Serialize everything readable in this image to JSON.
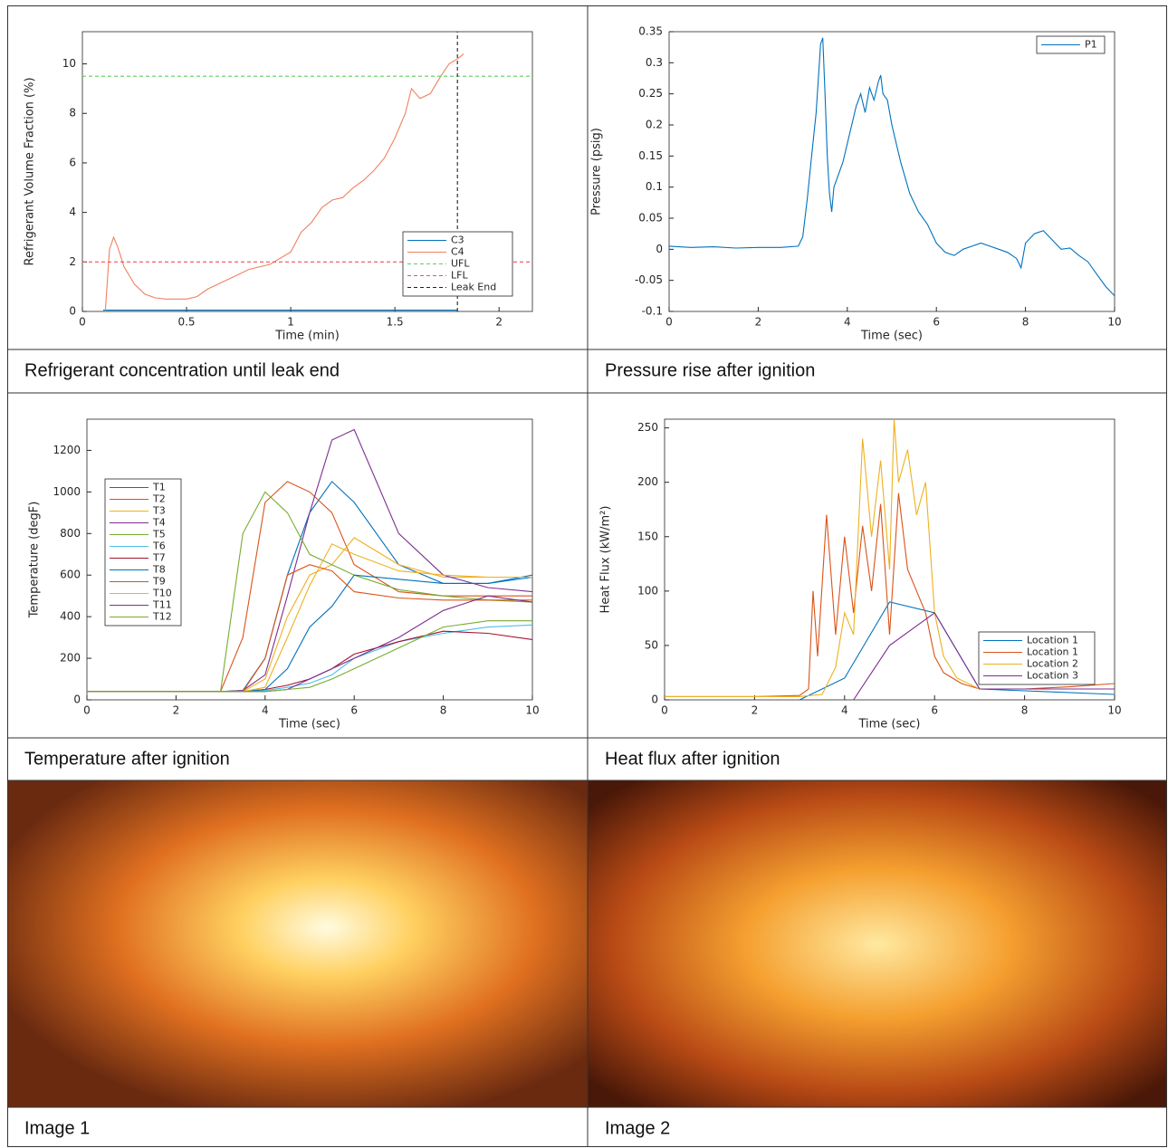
{
  "captions": [
    "Refrigerant concentration until leak end",
    "Pressure rise after ignition",
    "Temperature after ignition",
    "Heat flux after ignition",
    "Image 1",
    "Image 2"
  ],
  "chart_data": [
    {
      "type": "line",
      "xlabel": "Time (min)",
      "ylabel": "Refrigerant Volume Fraction (%)",
      "xlim": [
        0,
        2.16
      ],
      "ylim": [
        0,
        11.3
      ],
      "xticks": [
        0,
        0.5,
        1,
        1.5,
        2
      ],
      "yticks": [
        0,
        2,
        4,
        6,
        8,
        10
      ],
      "legend": "lower right",
      "series": [
        {
          "name": "C3",
          "color": "#0072bd",
          "linestyle": "solid",
          "x": [
            0.1,
            1.8
          ],
          "values": [
            0.05,
            0.05
          ]
        },
        {
          "name": "C4",
          "color": "#f08060",
          "linestyle": "solid",
          "x": [
            0.11,
            0.13,
            0.15,
            0.17,
            0.2,
            0.25,
            0.3,
            0.35,
            0.4,
            0.5,
            0.55,
            0.6,
            0.7,
            0.8,
            0.9,
            1.0,
            1.05,
            1.1,
            1.15,
            1.2,
            1.25,
            1.3,
            1.35,
            1.4,
            1.45,
            1.5,
            1.55,
            1.58,
            1.62,
            1.67,
            1.72,
            1.76,
            1.8,
            1.83
          ],
          "values": [
            0,
            2.5,
            3.0,
            2.6,
            1.8,
            1.1,
            0.7,
            0.55,
            0.5,
            0.5,
            0.6,
            0.9,
            1.3,
            1.7,
            1.9,
            2.4,
            3.2,
            3.6,
            4.2,
            4.5,
            4.6,
            5.0,
            5.3,
            5.7,
            6.2,
            7.0,
            8.0,
            9.0,
            8.6,
            8.8,
            9.5,
            10.0,
            10.2,
            10.4
          ]
        },
        {
          "name": "UFL",
          "color": "#5ccf5c",
          "linestyle": "dash",
          "x": [
            0,
            2.16
          ],
          "values": [
            9.5,
            9.5
          ]
        },
        {
          "name": "LFL",
          "color": "#f05050",
          "linestyle": "dash",
          "x": [
            0,
            2.16
          ],
          "values": [
            2,
            2
          ]
        },
        {
          "name": "Leak End",
          "color": "#222222",
          "linestyle": "dash",
          "x": [
            1.8,
            1.8
          ],
          "values": [
            0,
            11.3
          ]
        }
      ]
    },
    {
      "type": "line",
      "xlabel": "Time (sec)",
      "ylabel": "Pressure (psig)",
      "xlim": [
        0,
        10
      ],
      "ylim": [
        -0.1,
        0.35
      ],
      "xticks": [
        0,
        2,
        4,
        6,
        8,
        10
      ],
      "yticks": [
        -0.1,
        -0.05,
        0,
        0.05,
        0.1,
        0.15,
        0.2,
        0.25,
        0.3,
        0.35
      ],
      "legend": "upper right",
      "series": [
        {
          "name": "P1",
          "color": "#0072bd",
          "linestyle": "solid",
          "x": [
            0,
            0.5,
            1,
            1.5,
            2,
            2.5,
            2.9,
            3.0,
            3.1,
            3.2,
            3.3,
            3.4,
            3.45,
            3.5,
            3.55,
            3.6,
            3.65,
            3.7,
            3.8,
            3.9,
            4.0,
            4.1,
            4.2,
            4.3,
            4.4,
            4.5,
            4.6,
            4.7,
            4.75,
            4.8,
            4.9,
            5.0,
            5.2,
            5.4,
            5.6,
            5.8,
            6.0,
            6.2,
            6.4,
            6.6,
            6.8,
            7.0,
            7.2,
            7.4,
            7.6,
            7.8,
            7.9,
            8.0,
            8.2,
            8.4,
            8.6,
            8.8,
            9.0,
            9.2,
            9.4,
            9.6,
            9.8,
            10
          ],
          "values": [
            0.005,
            0.003,
            0.004,
            0.002,
            0.003,
            0.003,
            0.005,
            0.02,
            0.08,
            0.15,
            0.22,
            0.33,
            0.34,
            0.25,
            0.15,
            0.09,
            0.06,
            0.1,
            0.12,
            0.14,
            0.17,
            0.2,
            0.23,
            0.25,
            0.22,
            0.26,
            0.24,
            0.27,
            0.28,
            0.25,
            0.24,
            0.2,
            0.14,
            0.09,
            0.06,
            0.04,
            0.01,
            -0.005,
            -0.01,
            0.0,
            0.005,
            0.01,
            0.005,
            0.0,
            -0.005,
            -0.015,
            -0.03,
            0.01,
            0.025,
            0.03,
            0.015,
            0.0,
            0.002,
            -0.01,
            -0.02,
            -0.04,
            -0.06,
            -0.075
          ]
        }
      ]
    },
    {
      "type": "line",
      "xlabel": "Time (sec)",
      "ylabel": "Temperature (degF)",
      "xlim": [
        0,
        10
      ],
      "ylim": [
        0,
        1350
      ],
      "xticks": [
        0,
        2,
        4,
        6,
        8,
        10
      ],
      "yticks": [
        0,
        200,
        400,
        600,
        800,
        1000,
        1200
      ],
      "legend": "center left",
      "x": [
        0,
        1,
        2,
        3,
        3.5,
        4,
        4.5,
        5,
        5.5,
        6,
        7,
        8,
        9,
        10
      ],
      "series": [
        {
          "name": "T1",
          "color": "#0072bd",
          "linestyle": "solid",
          "values": [
            40,
            40,
            40,
            40,
            45,
            200,
            600,
            900,
            1050,
            950,
            650,
            560,
            560,
            590
          ]
        },
        {
          "name": "T2",
          "color": "#d95319",
          "linestyle": "solid",
          "values": [
            40,
            40,
            40,
            40,
            300,
            950,
            1050,
            1000,
            900,
            650,
            520,
            500,
            500,
            500
          ]
        },
        {
          "name": "T3",
          "color": "#edb120",
          "linestyle": "solid",
          "values": [
            40,
            40,
            40,
            40,
            40,
            100,
            400,
            600,
            650,
            780,
            650,
            590,
            590,
            590
          ]
        },
        {
          "name": "T4",
          "color": "#7e2f8e",
          "linestyle": "solid",
          "values": [
            40,
            40,
            40,
            40,
            45,
            120,
            500,
            900,
            1250,
            1300,
            800,
            600,
            540,
            520
          ]
        },
        {
          "name": "T5",
          "color": "#77ac30",
          "linestyle": "solid",
          "values": [
            40,
            40,
            40,
            40,
            800,
            1000,
            900,
            700,
            650,
            600,
            530,
            500,
            480,
            470
          ]
        },
        {
          "name": "T6",
          "color": "#4dbeee",
          "linestyle": "solid",
          "values": [
            40,
            40,
            40,
            40,
            40,
            45,
            60,
            80,
            120,
            200,
            280,
            320,
            350,
            360
          ]
        },
        {
          "name": "T7",
          "color": "#a2142f",
          "linestyle": "solid",
          "values": [
            40,
            40,
            40,
            40,
            40,
            50,
            70,
            100,
            150,
            220,
            280,
            330,
            320,
            290
          ]
        },
        {
          "name": "T8",
          "color": "#0072bd",
          "linestyle": "solid",
          "values": [
            40,
            40,
            40,
            40,
            40,
            50,
            150,
            350,
            450,
            600,
            580,
            560,
            560,
            600
          ]
        },
        {
          "name": "T9",
          "color": "#d95319",
          "linestyle": "solid",
          "values": [
            40,
            40,
            40,
            40,
            40,
            200,
            600,
            650,
            620,
            520,
            490,
            480,
            480,
            480
          ]
        },
        {
          "name": "T10",
          "color": "#edb120",
          "linestyle": "solid",
          "values": [
            40,
            40,
            40,
            40,
            40,
            60,
            300,
            550,
            750,
            700,
            620,
            600,
            590,
            590
          ]
        },
        {
          "name": "T11",
          "color": "#7e2f8e",
          "linestyle": "solid",
          "values": [
            40,
            40,
            40,
            40,
            40,
            40,
            50,
            100,
            150,
            200,
            300,
            430,
            500,
            470
          ]
        },
        {
          "name": "T12",
          "color": "#77ac30",
          "linestyle": "solid",
          "values": [
            40,
            40,
            40,
            40,
            40,
            40,
            50,
            60,
            100,
            150,
            250,
            350,
            380,
            380
          ]
        }
      ]
    },
    {
      "type": "line",
      "xlabel": "Time (sec)",
      "ylabel": "Heat Flux (kW/m²)",
      "xlim": [
        0,
        10
      ],
      "ylim": [
        0,
        258
      ],
      "xticks": [
        0,
        2,
        4,
        6,
        8,
        10
      ],
      "yticks": [
        0,
        50,
        100,
        150,
        200,
        250
      ],
      "legend": "lower right",
      "series": [
        {
          "name": "Location 1",
          "color": "#0072bd",
          "linestyle": "solid",
          "x": [
            3,
            4,
            5,
            6,
            7,
            10
          ],
          "values": [
            0,
            20,
            90,
            80,
            10,
            5
          ]
        },
        {
          "name": "Location 1",
          "color": "#d95319",
          "linestyle": "solid",
          "x": [
            0,
            1,
            2,
            3,
            3.2,
            3.3,
            3.4,
            3.6,
            3.8,
            4,
            4.2,
            4.4,
            4.6,
            4.8,
            5,
            5.2,
            5.4,
            5.6,
            5.8,
            6,
            6.2,
            6.4,
            6.6,
            7,
            8,
            9,
            10
          ],
          "values": [
            3,
            3,
            3,
            4,
            10,
            100,
            40,
            170,
            60,
            150,
            80,
            160,
            100,
            180,
            60,
            190,
            120,
            100,
            80,
            40,
            25,
            20,
            15,
            10,
            10,
            12,
            15
          ]
        },
        {
          "name": "Location 2",
          "color": "#edb120",
          "linestyle": "solid",
          "x": [
            0,
            3,
            3.5,
            3.8,
            4,
            4.2,
            4.4,
            4.6,
            4.8,
            5,
            5.1,
            5.2,
            5.4,
            5.6,
            5.8,
            6,
            6.2,
            6.5,
            7,
            8,
            10
          ],
          "values": [
            3,
            3,
            5,
            30,
            80,
            60,
            240,
            150,
            220,
            120,
            258,
            200,
            230,
            170,
            200,
            80,
            40,
            20,
            10,
            10,
            10
          ]
        },
        {
          "name": "Location 3",
          "color": "#7e2f8e",
          "linestyle": "solid",
          "x": [
            4.2,
            5,
            6,
            7,
            10
          ],
          "values": [
            0,
            50,
            80,
            10,
            10
          ]
        }
      ]
    }
  ]
}
